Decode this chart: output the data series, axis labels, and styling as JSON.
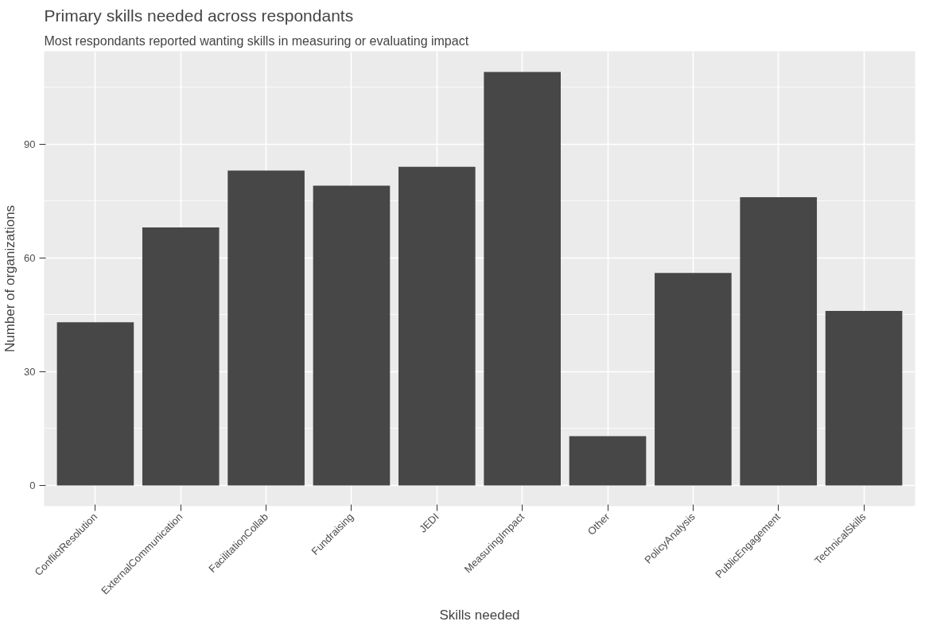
{
  "chart_data": {
    "type": "bar",
    "title": "Primary skills needed across respondants",
    "subtitle": "Most respondants reported wanting skills in measuring or evaluating impact",
    "xlabel": "Skills needed",
    "ylabel": "Number of organizations",
    "categories": [
      "ConflictResolution",
      "ExternalCommunication",
      "FacilitationCollab",
      "Fundraising",
      "JEDI",
      "MeasuringImpact",
      "Other",
      "PolicyAnalysis",
      "PublicEngagement",
      "TechnicalSkills"
    ],
    "values": [
      43,
      68,
      83,
      79,
      84,
      109,
      13,
      56,
      76,
      46
    ],
    "color": "#474747",
    "ylim": [
      -5.45,
      114.45
    ],
    "yticks": [
      0,
      30,
      60,
      90
    ],
    "grid": true
  }
}
